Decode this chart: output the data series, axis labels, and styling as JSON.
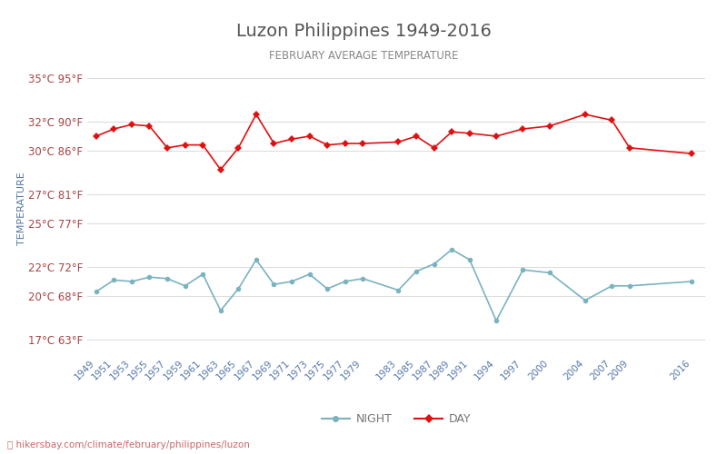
{
  "title": "Luzon Philippines 1949-2016",
  "subtitle": "FEBRUARY AVERAGE TEMPERATURE",
  "xlabel": "",
  "ylabel": "TEMPERATURE",
  "footer": "hikersbay.com/climate/february/philippines/luzon",
  "years": [
    1949,
    1951,
    1953,
    1955,
    1957,
    1959,
    1961,
    1963,
    1965,
    1967,
    1969,
    1971,
    1973,
    1975,
    1977,
    1979,
    1983,
    1985,
    1987,
    1989,
    1991,
    1994,
    1997,
    2000,
    2004,
    2007,
    2009,
    2016
  ],
  "day": [
    31.0,
    31.5,
    31.8,
    31.7,
    30.2,
    30.4,
    30.4,
    28.7,
    30.2,
    32.5,
    30.5,
    30.8,
    31.0,
    30.4,
    30.5,
    30.5,
    30.6,
    31.0,
    30.2,
    31.3,
    31.2,
    31.0,
    31.5,
    31.7,
    32.5,
    32.1,
    30.2,
    29.8
  ],
  "night": [
    20.3,
    21.1,
    21.0,
    21.3,
    21.2,
    20.7,
    21.5,
    19.0,
    20.5,
    22.5,
    20.8,
    21.0,
    21.5,
    20.5,
    21.0,
    21.2,
    20.4,
    21.7,
    22.2,
    23.2,
    22.5,
    18.3,
    21.8,
    21.6,
    19.7,
    20.7,
    20.7,
    21.0
  ],
  "yticks_c": [
    17,
    20,
    22,
    25,
    27,
    30,
    32,
    35
  ],
  "yticks_f": [
    63,
    68,
    72,
    77,
    81,
    86,
    90,
    95
  ],
  "day_color": "#e01010",
  "night_color": "#7ab3bf",
  "title_color": "#555555",
  "subtitle_color": "#888888",
  "ylabel_color": "#5577aa",
  "tick_color": "#aa4444",
  "background_color": "#ffffff",
  "grid_color": "#dddddd",
  "footer_color": "#cc6666",
  "legend_night": "NIGHT",
  "legend_day": "DAY"
}
